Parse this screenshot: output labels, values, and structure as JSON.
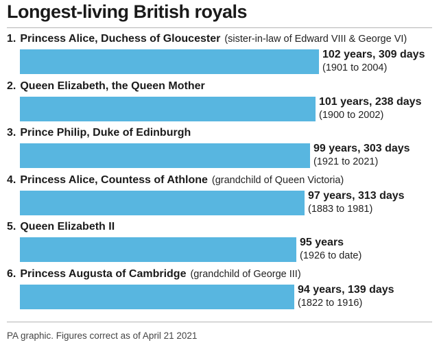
{
  "title": "Longest-living British royals",
  "footer": "PA graphic. Figures correct as of April 21 2021",
  "colors": {
    "bar": "#58b6e0",
    "text": "#1a1a1a"
  },
  "entries": [
    {
      "rank": "1.",
      "name": "Princess Alice, Duchess of Gloucester",
      "note": "(sister-in-law of Edward VIII & George VI)",
      "value_label": "102 years, 309 days",
      "range": "(1901 to 2004)"
    },
    {
      "rank": "2.",
      "name": "Queen Elizabeth, the Queen Mother",
      "note": "",
      "value_label": "101 years, 238 days",
      "range": "(1900 to 2002)"
    },
    {
      "rank": "3.",
      "name": "Prince Philip, Duke of Edinburgh",
      "note": "",
      "value_label": "99 years, 303 days",
      "range": "(1921 to 2021)"
    },
    {
      "rank": "4.",
      "name": "Princess Alice, Countess of Athlone",
      "note": "(grandchild of Queen Victoria)",
      "value_label": "97 years, 313 days",
      "range": "(1883 to 1981)"
    },
    {
      "rank": "5.",
      "name": "Queen Elizabeth II",
      "note": "",
      "value_label": "95 years",
      "range": "(1926 to date)"
    },
    {
      "rank": "6.",
      "name": "Princess Augusta of Cambridge",
      "note": "(grandchild of George III)",
      "value_label": "94 years, 139 days",
      "range": "(1822 to 1916)"
    }
  ],
  "chart_data": {
    "type": "bar",
    "orientation": "horizontal",
    "title": "Longest-living British royals",
    "categories": [
      "Princess Alice, Duchess of Gloucester",
      "Queen Elizabeth, the Queen Mother",
      "Prince Philip, Duke of Edinburgh",
      "Princess Alice, Countess of Athlone",
      "Queen Elizabeth II",
      "Princess Augusta of Cambridge"
    ],
    "values": [
      102.85,
      101.65,
      99.83,
      97.86,
      95.0,
      94.38
    ],
    "unit": "years",
    "xlim": [
      0,
      102.85
    ],
    "grid": false,
    "legend": "none"
  }
}
